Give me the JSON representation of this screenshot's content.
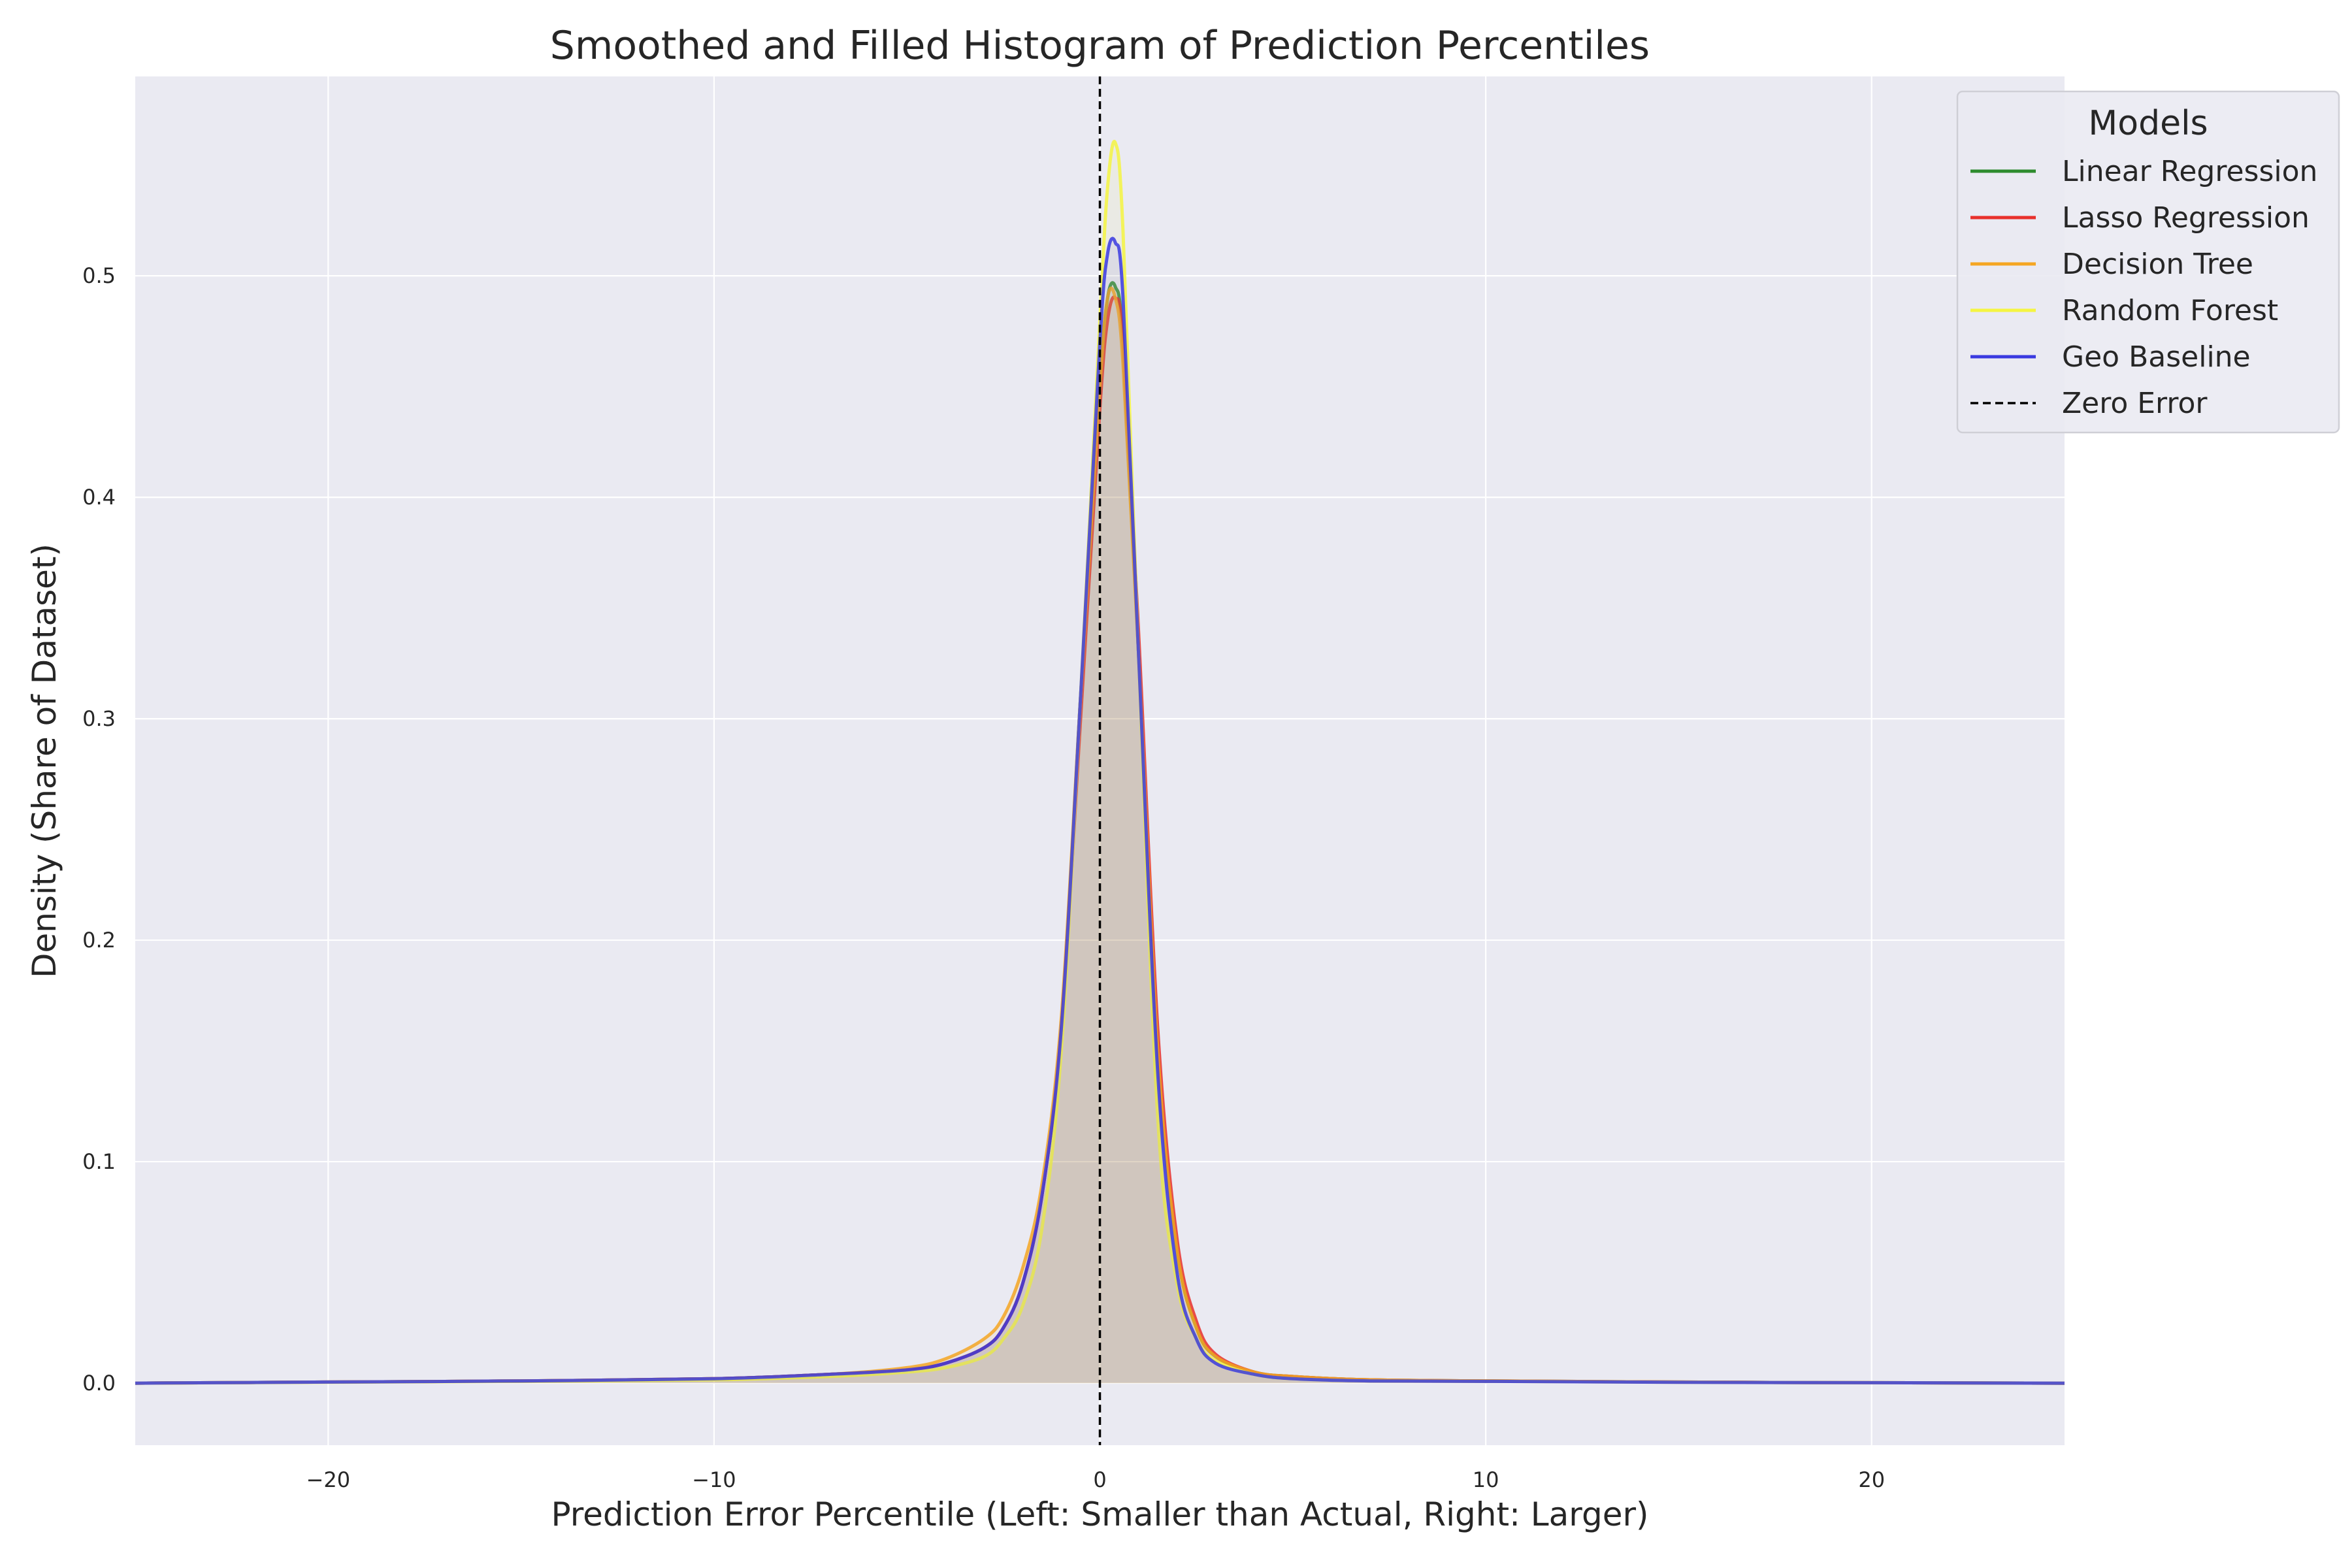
{
  "chart_data": {
    "type": "line",
    "title": "Smoothed and Filled Histogram of Prediction Percentiles",
    "xlabel": "Prediction Error Percentile (Left: Smaller than Actual, Right: Larger)",
    "ylabel": "Density (Share of Dataset)",
    "xlim": [
      -25,
      25
    ],
    "ylim": [
      -0.028,
      0.59
    ],
    "xticks": [
      -20,
      -10,
      0,
      10,
      20
    ],
    "xtick_labels": [
      "−20",
      "−10",
      "0",
      "10",
      "20"
    ],
    "yticks": [
      0.0,
      0.1,
      0.2,
      0.3,
      0.4,
      0.5
    ],
    "ytick_labels": [
      "0.0",
      "0.1",
      "0.2",
      "0.3",
      "0.4",
      "0.5"
    ],
    "grid": true,
    "legend": {
      "title": "Models",
      "position": "top-right"
    },
    "background": "#eaeaf2",
    "series": [
      {
        "name": "Linear Regression",
        "color": "#2e8b2e",
        "x": [
          -25,
          -20,
          -15,
          -10,
          -7,
          -5,
          -4,
          -3,
          -2.5,
          -2,
          -1.5,
          -1,
          -0.5,
          0,
          0.2,
          0.4,
          0.6,
          1,
          1.5,
          2,
          2.5,
          3,
          4,
          5,
          7,
          10,
          15,
          20,
          25
        ],
        "y": [
          0.0,
          0.0005,
          0.001,
          0.002,
          0.004,
          0.006,
          0.009,
          0.016,
          0.025,
          0.045,
          0.085,
          0.16,
          0.31,
          0.45,
          0.49,
          0.495,
          0.47,
          0.33,
          0.15,
          0.06,
          0.025,
          0.012,
          0.005,
          0.003,
          0.0015,
          0.001,
          0.0005,
          0.0002,
          0.0
        ]
      },
      {
        "name": "Lasso Regression",
        "color": "#e8302c",
        "x": [
          -25,
          -20,
          -15,
          -10,
          -7,
          -5,
          -4,
          -3,
          -2.5,
          -2,
          -1.5,
          -1,
          -0.5,
          0,
          0.2,
          0.4,
          0.6,
          1,
          1.5,
          2,
          2.5,
          3,
          4,
          5,
          7,
          10,
          15,
          20,
          25
        ],
        "y": [
          0.0,
          0.0005,
          0.001,
          0.002,
          0.004,
          0.006,
          0.009,
          0.016,
          0.025,
          0.045,
          0.085,
          0.16,
          0.3,
          0.44,
          0.48,
          0.49,
          0.47,
          0.34,
          0.16,
          0.065,
          0.028,
          0.013,
          0.005,
          0.003,
          0.0015,
          0.001,
          0.0005,
          0.0002,
          0.0
        ]
      },
      {
        "name": "Decision Tree",
        "color": "#f5a623",
        "x": [
          -25,
          -20,
          -15,
          -10,
          -7,
          -5,
          -4,
          -3,
          -2.5,
          -2,
          -1.5,
          -1,
          -0.5,
          0,
          0.2,
          0.4,
          0.6,
          1,
          1.5,
          2,
          2.5,
          3,
          4,
          5,
          7,
          10,
          15,
          20,
          25
        ],
        "y": [
          0.0,
          0.0005,
          0.001,
          0.002,
          0.004,
          0.007,
          0.011,
          0.02,
          0.03,
          0.052,
          0.09,
          0.165,
          0.31,
          0.45,
          0.49,
          0.49,
          0.46,
          0.33,
          0.15,
          0.06,
          0.025,
          0.012,
          0.005,
          0.003,
          0.0015,
          0.001,
          0.0005,
          0.0002,
          0.0
        ]
      },
      {
        "name": "Random Forest",
        "color": "#f5f542",
        "x": [
          -25,
          -20,
          -15,
          -10,
          -7,
          -5,
          -4,
          -3,
          -2.5,
          -2,
          -1.5,
          -1,
          -0.5,
          0,
          0.2,
          0.4,
          0.6,
          1,
          1.5,
          2,
          2.5,
          3,
          4,
          5,
          7,
          10,
          15,
          20,
          25
        ],
        "y": [
          0.0,
          0.0004,
          0.0008,
          0.0015,
          0.003,
          0.005,
          0.007,
          0.012,
          0.02,
          0.035,
          0.07,
          0.15,
          0.31,
          0.48,
          0.54,
          0.56,
          0.52,
          0.33,
          0.12,
          0.045,
          0.02,
          0.01,
          0.004,
          0.002,
          0.001,
          0.0008,
          0.0004,
          0.0002,
          0.0
        ]
      },
      {
        "name": "Geo Baseline",
        "color": "#3a3ae0",
        "x": [
          -25,
          -20,
          -15,
          -10,
          -7,
          -5,
          -4,
          -3,
          -2.5,
          -2,
          -1.5,
          -1,
          -0.5,
          0,
          0.2,
          0.4,
          0.6,
          1,
          1.5,
          2,
          2.5,
          3,
          4,
          5,
          7,
          10,
          15,
          20,
          25
        ],
        "y": [
          0.0,
          0.0005,
          0.001,
          0.002,
          0.004,
          0.006,
          0.009,
          0.016,
          0.025,
          0.045,
          0.085,
          0.16,
          0.31,
          0.47,
          0.51,
          0.515,
          0.49,
          0.33,
          0.14,
          0.05,
          0.02,
          0.009,
          0.004,
          0.002,
          0.001,
          0.0008,
          0.0004,
          0.0002,
          0.0
        ]
      },
      {
        "name": "Zero Error",
        "color": "#000000",
        "type": "vline",
        "x": 0,
        "dash": true
      }
    ]
  }
}
